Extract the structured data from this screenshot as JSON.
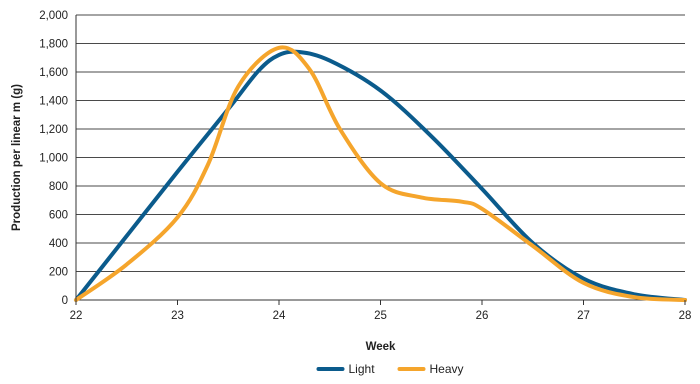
{
  "chart_data": {
    "type": "line",
    "xlabel": "Week",
    "ylabel": "Production per linear m (g)",
    "xlim": [
      22,
      28
    ],
    "ylim": [
      0,
      2000
    ],
    "x_ticks": [
      "22",
      "23",
      "24",
      "25",
      "26",
      "27",
      "28"
    ],
    "y_ticks": [
      "0",
      "200",
      "400",
      "600",
      "800",
      "1,000",
      "1,200",
      "1,400",
      "1,600",
      "1,800",
      "2,000"
    ],
    "grid": "horizontal",
    "legend_position": "bottom-center",
    "series": [
      {
        "name": "Light",
        "color": "#0b5b8c",
        "points": [
          [
            22.0,
            0
          ],
          [
            22.5,
            450
          ],
          [
            23.0,
            900
          ],
          [
            23.5,
            1340
          ],
          [
            23.8,
            1610
          ],
          [
            24.0,
            1720
          ],
          [
            24.2,
            1740
          ],
          [
            24.5,
            1680
          ],
          [
            25.0,
            1470
          ],
          [
            25.5,
            1150
          ],
          [
            26.0,
            780
          ],
          [
            26.5,
            400
          ],
          [
            27.0,
            150
          ],
          [
            27.5,
            40
          ],
          [
            28.0,
            0
          ]
        ]
      },
      {
        "name": "Heavy",
        "color": "#f5a52c",
        "points": [
          [
            22.0,
            0
          ],
          [
            22.5,
            250
          ],
          [
            23.0,
            580
          ],
          [
            23.3,
            950
          ],
          [
            23.6,
            1500
          ],
          [
            24.0,
            1770
          ],
          [
            24.3,
            1620
          ],
          [
            24.6,
            1200
          ],
          [
            25.0,
            820
          ],
          [
            25.4,
            720
          ],
          [
            25.8,
            690
          ],
          [
            26.0,
            640
          ],
          [
            26.5,
            380
          ],
          [
            27.0,
            120
          ],
          [
            27.5,
            20
          ],
          [
            28.0,
            0
          ]
        ]
      }
    ]
  }
}
